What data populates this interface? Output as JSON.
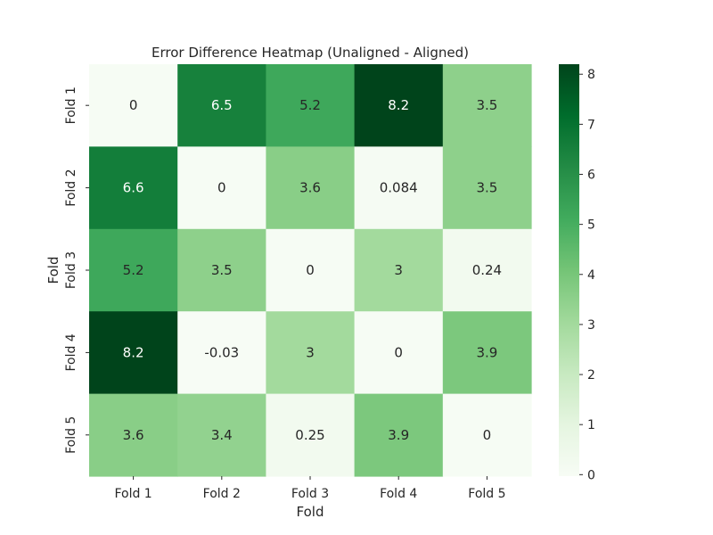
{
  "chart_data": {
    "type": "heatmap",
    "title": "Error Difference Heatmap (Unaligned - Aligned)",
    "xlabel": "Fold",
    "ylabel": "Fold",
    "x_categories": [
      "Fold 1",
      "Fold 2",
      "Fold 3",
      "Fold 4",
      "Fold 5"
    ],
    "y_categories": [
      "Fold 1",
      "Fold 2",
      "Fold 3",
      "Fold 4",
      "Fold 5"
    ],
    "values": [
      [
        0,
        6.5,
        5.2,
        8.2,
        3.5
      ],
      [
        6.6,
        0,
        3.6,
        0.084,
        3.5
      ],
      [
        5.2,
        3.5,
        0,
        3,
        0.24
      ],
      [
        8.2,
        -0.03,
        3,
        0,
        3.9
      ],
      [
        3.6,
        3.4,
        0.25,
        3.9,
        0
      ]
    ],
    "value_labels": [
      [
        "0",
        "6.5",
        "5.2",
        "8.2",
        "3.5"
      ],
      [
        "6.6",
        "0",
        "3.6",
        "0.084",
        "3.5"
      ],
      [
        "5.2",
        "3.5",
        "0",
        "3",
        "0.24"
      ],
      [
        "8.2",
        "-0.03",
        "3",
        "0",
        "3.9"
      ],
      [
        "3.6",
        "3.4",
        "0.25",
        "3.9",
        "0"
      ]
    ],
    "colormap": "Greens",
    "vmin": -0.03,
    "vmax": 8.2,
    "colorbar_ticks": [
      0,
      1,
      2,
      3,
      4,
      5,
      6,
      7,
      8
    ],
    "colors": {
      "low": "#f7fcf5",
      "high": "#00441b",
      "text_dark": "#262626",
      "text_light": "#ffffff"
    }
  }
}
